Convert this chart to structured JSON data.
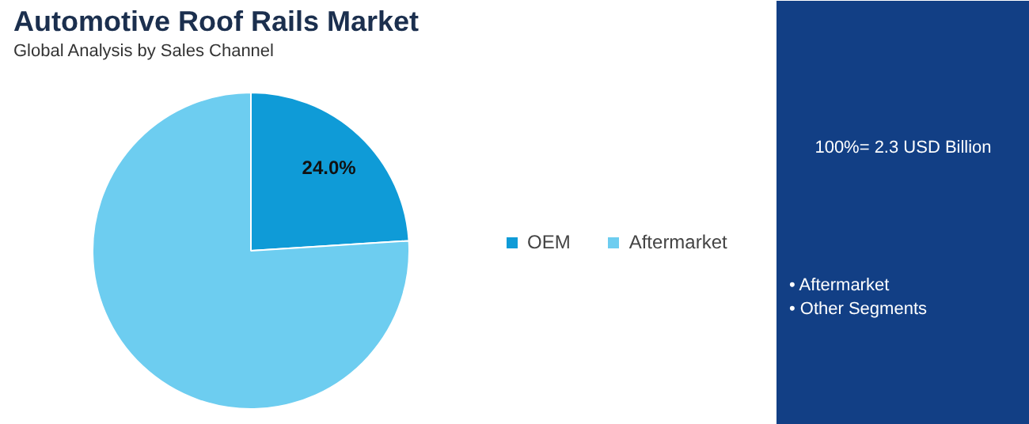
{
  "chart_data": {
    "type": "pie",
    "title": "Automotive Roof Rails Market",
    "subtitle": "Global Analysis by Sales Channel",
    "categories": [
      "OEM",
      "Aftermarket"
    ],
    "values": [
      24.0,
      76.0
    ],
    "colors": [
      "#0f9bd7",
      "#6dcdf0"
    ],
    "value_labels": [
      "24.0%",
      null
    ],
    "legend": "right",
    "annotations": [
      "100%= 2.3 USD Billion",
      "• Aftermarket",
      "• Other Segments"
    ]
  }
}
